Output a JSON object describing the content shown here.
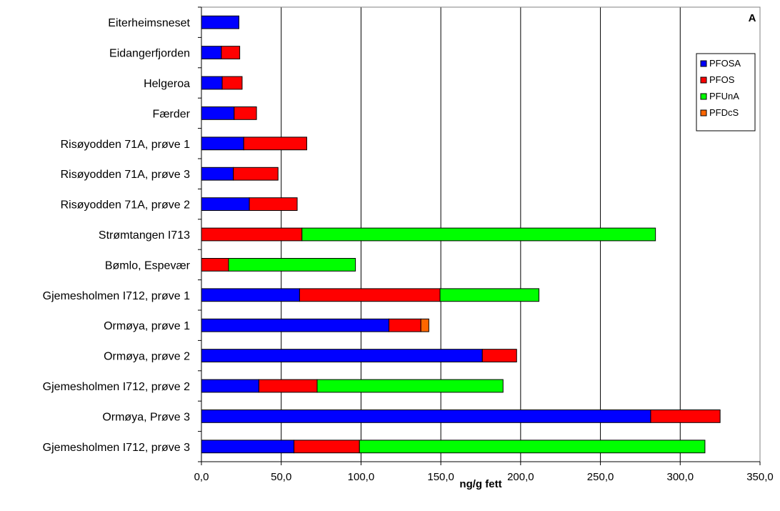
{
  "chart_data": {
    "type": "bar",
    "orientation": "horizontal",
    "stacked": true,
    "panel_label": "A",
    "xlabel": "ng/g fett",
    "ylabel": "",
    "xlim": [
      0,
      350
    ],
    "xticks": [
      0,
      50,
      100,
      150,
      200,
      250,
      300,
      350
    ],
    "xtick_labels": [
      "0,0",
      "50,0",
      "100,0",
      "150,0",
      "200,0",
      "250,0",
      "300,0",
      "350,0"
    ],
    "grid": "vertical",
    "legend_position": "top-right",
    "categories": [
      "Eiterheimsneset",
      "Eidangerfjorden",
      "Helgeroa",
      "Færder",
      "Risøyodden 71A, prøve 1",
      "Risøyodden 71A, prøve 3",
      "Risøyodden 71A, prøve 2",
      "Strømtangen I713",
      "Bømlo, Espevær",
      "Gjemesholmen I712, prøve 1",
      "Ormøya, prøve 1",
      "Ormøya, prøve 2",
      "Gjemesholmen I712, prøve 2",
      "Ormøya, Prøve 3",
      "Gjemesholmen I712, prøve 3"
    ],
    "series": [
      {
        "name": "PFOSA",
        "color": "#0000FF",
        "values": [
          23.5,
          12.5,
          13,
          20.5,
          26.5,
          20,
          30,
          0,
          0,
          61.5,
          117.5,
          176,
          36,
          281.5,
          58
        ]
      },
      {
        "name": "PFOS",
        "color": "#FF0000",
        "values": [
          0,
          11.5,
          12.5,
          14,
          39.5,
          28,
          30,
          63,
          17,
          88,
          20,
          21.5,
          36.5,
          43.5,
          41
        ]
      },
      {
        "name": "PFUnA",
        "color": "#00FF00",
        "values": [
          0,
          0,
          0,
          0,
          0,
          0,
          0,
          221.5,
          79.5,
          62,
          0,
          0,
          116.5,
          0,
          216.5
        ]
      },
      {
        "name": "PFDcS",
        "color": "#FF6600",
        "values": [
          0,
          0,
          0,
          0,
          0,
          0,
          0,
          0,
          0,
          0,
          5,
          0,
          0,
          0,
          0
        ]
      }
    ]
  }
}
